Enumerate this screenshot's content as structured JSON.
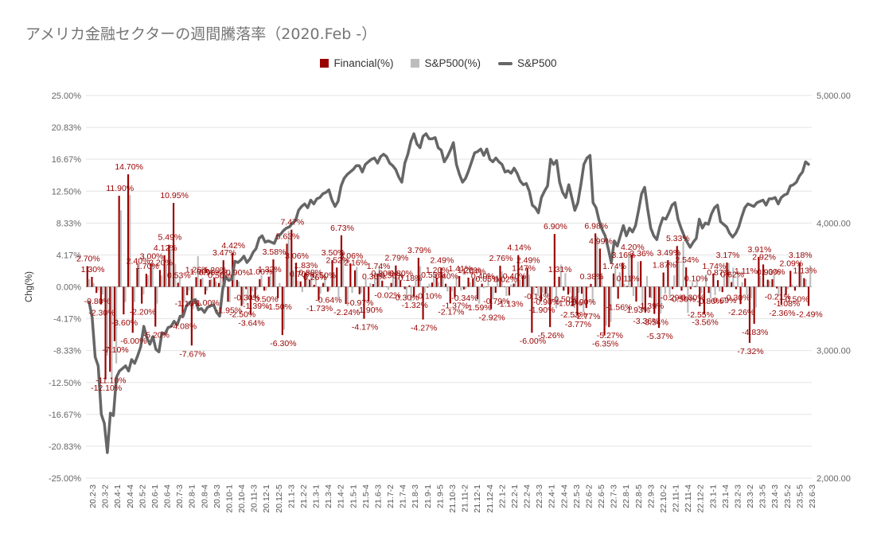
{
  "chart_data": {
    "type": "bar+line",
    "title": "アメリカ金融セクターの週間騰落率（2020.Feb -）",
    "legend": [
      {
        "name": "Financial(%)",
        "color": "#990000"
      },
      {
        "name": "S&P500(%)",
        "color": "#bdbdbd"
      },
      {
        "name": "S&P500",
        "color": "#666666"
      }
    ],
    "ylabel_left": "Chg(%)",
    "y_left": {
      "ticks": [
        "25.00%",
        "20.83%",
        "16.67%",
        "12.50%",
        "8.33%",
        "4.17%",
        "0.00%",
        "-4.17%",
        "-8.33%",
        "-12.50%",
        "-16.67%",
        "-20.83%",
        "-25.00%"
      ],
      "min": -25,
      "max": 25
    },
    "y_right": {
      "ticks": [
        "5,000.00",
        "4,000.00",
        "3,000.00",
        "2,000.00"
      ],
      "min": 2000,
      "max": 5000
    },
    "x_tick_labels": [
      "20.2-3",
      "20.3-2",
      "20.4-1",
      "20.4-4",
      "20.5-2",
      "20.6-1",
      "20.6-4",
      "20.7-3",
      "20.8-1",
      "20.8-4",
      "20.9-3",
      "20.10-1",
      "20.10-4",
      "20.11-3",
      "20.12-1",
      "20.12-5",
      "21.1-3",
      "21.2-2",
      "21.3-1",
      "21.3-4",
      "21.4-2",
      "21.5-1",
      "21.5-4",
      "21.6-3",
      "21.7-2",
      "21.7-4",
      "21.8-3",
      "21.9-1",
      "21.9-5",
      "21.10-3",
      "21.11-2",
      "21.12-1",
      "21.12-4",
      "22.1-2",
      "22.2-1",
      "22.2-4",
      "22.3-3",
      "22.4-1",
      "22.4-4",
      "22.5-3",
      "22.6-2",
      "22.6-5",
      "22.7-3",
      "22.8-1",
      "22.8-5",
      "22.9-3",
      "22.10-2",
      "22.11-1",
      "22.11-4",
      "22.12-2",
      "23.1-1",
      "23.1-4",
      "23.2-3",
      "23.3-2",
      "23.3-5",
      "23.4-3",
      "23.5-2",
      "23.5-5",
      "23.6-3"
    ],
    "financial_pct": [
      2.7,
      1.3,
      -0.8,
      -2.3,
      -12.1,
      -11.1,
      -7.1,
      11.9,
      -3.6,
      14.7,
      -6.0,
      2.4,
      -2.2,
      1.7,
      3.0,
      -5.2,
      2.2,
      4.12,
      5.49,
      10.95,
      0.53,
      -4.08,
      -1.1,
      -7.67,
      1.26,
      1.0,
      -1.0,
      0.9,
      1.2,
      0.5,
      3.47,
      -1.95,
      4.42,
      0.9,
      -2.5,
      -0.3,
      -3.64,
      -1.39,
      1.0,
      -0.5,
      1.32,
      3.58,
      -1.5,
      -6.3,
      5.63,
      7.47,
      3.06,
      0.7,
      1.83,
      0.88,
      0.26,
      -1.73,
      0.5,
      -0.64,
      3.5,
      2.52,
      6.73,
      -2.24,
      3.06,
      2.16,
      -0.97,
      -4.17,
      -1.9,
      0.36,
      1.74,
      0.8,
      -0.02,
      0.5,
      2.79,
      0.8,
      -0.3,
      0.18,
      -1.32,
      3.79,
      -4.27,
      -0.1,
      0.55,
      1.2,
      2.49,
      0.4,
      -2.17,
      -1.37,
      1.41,
      -0.34,
      1.2,
      1.04,
      -1.59,
      0.4,
      0.05,
      -2.92,
      -0.79,
      2.76,
      0.02,
      -1.13,
      0.4,
      4.14,
      1.47,
      2.49,
      -6.0,
      -0.14,
      -1.9,
      -0.9,
      -5.26,
      6.9,
      1.31,
      -0.5,
      -1.02,
      -2.53,
      -3.77,
      -0.9,
      -2.77,
      0.38,
      6.98,
      4.99,
      -6.35,
      -5.27,
      1.74,
      -1.56,
      3.16,
      0.11,
      4.2,
      -1.93,
      3.36,
      -3.36,
      -1.39,
      -3.54,
      -5.37,
      1.87,
      3.49,
      -0.29,
      5.33,
      -0.5,
      2.54,
      -0.3,
      0.1,
      -2.55,
      -3.56,
      -0.8,
      1.74,
      0.87,
      -0.69,
      3.17,
      0.62,
      -0.3,
      -2.26,
      1.11,
      -7.32,
      -4.83,
      3.91,
      2.92,
      0.93,
      1.0,
      -0.21,
      -2.36,
      -1.08,
      2.09,
      -0.5,
      3.18,
      1.13,
      -2.49
    ],
    "sp500_pct": [
      1.0,
      0.5,
      -0.5,
      -1.0,
      -9.0,
      -12.0,
      -10.0,
      10.0,
      -2.0,
      12.0,
      -2.0,
      3.0,
      -1.0,
      1.5,
      3.2,
      -2.2,
      1.5,
      3.0,
      4.9,
      3.0,
      1.2,
      -2.0,
      -0.5,
      -2.9,
      4.0,
      1.2,
      -0.5,
      1.0,
      0.7,
      1.5,
      2.3,
      -2.0,
      2.5,
      0.7,
      -2.3,
      -1.7,
      -0.6,
      -0.4,
      1.5,
      -0.5,
      1.5,
      2.5,
      0.5,
      -5.6,
      7.3,
      2.2,
      0.8,
      -0.7,
      1.7,
      1.3,
      1.2,
      -0.9,
      1.7,
      -0.5,
      1.9,
      -1.5,
      4.7,
      -2.5,
      -0.8,
      2.6,
      -0.8,
      1.0,
      0.5,
      1.8,
      2.7,
      0.1,
      -0.4,
      1.4,
      1.2,
      0.0,
      -1.4,
      -1.9,
      1.2,
      2.7,
      -0.8,
      0.4,
      1.5,
      0.6,
      1.2,
      -0.6,
      -0.6,
      1.4,
      -0.5,
      -0.3,
      0.6,
      1.1,
      -2.2,
      -0.2,
      1.8,
      -1.6,
      1.5,
      2.0,
      -1.2,
      0.3,
      0.7,
      0.9,
      1.4,
      1.6,
      -1.0,
      -1.2,
      -0.8,
      -1.2,
      -1.8,
      -2.8,
      2.9,
      1.8,
      -0.8,
      -2.8,
      -0.8,
      -3.3,
      -0.2,
      -2.1,
      6.6,
      1.8,
      -5.1,
      -4.6,
      2.4,
      1.9,
      0.4,
      4.3,
      -1.2,
      3.3,
      -3.3,
      1.4,
      -1.5,
      -2.9,
      -3.5,
      -0.9,
      -1.5,
      1.5,
      4.7,
      5.9,
      -3.4,
      0.6,
      1.0,
      -0.8,
      1.6,
      -1.5,
      -1.1,
      -0.6,
      1.6,
      3.1,
      2.5,
      1.8,
      0.6,
      -1.1,
      -1.5,
      -2.7,
      1.4,
      0.2,
      0.8,
      1.6,
      -1.2,
      -0.1,
      -0.3,
      0.3,
      0.2,
      1.9,
      1.0,
      2.8,
      -0.3
    ],
    "sp500": [
      3380,
      3260,
      2950,
      2880,
      2500,
      2430,
      2200,
      2510,
      2490,
      2790,
      2840,
      2860,
      2880,
      2840,
      2930,
      2900,
      2960,
      3030,
      3190,
      3100,
      3050,
      3110,
      3010,
      2990,
      3140,
      3130,
      3180,
      3190,
      3230,
      3200,
      3270,
      3270,
      3350,
      3375,
      3390,
      3400,
      3320,
      3330,
      3300,
      3340,
      3350,
      3360,
      3300,
      3270,
      3480,
      3580,
      3550,
      3560,
      3700,
      3690,
      3710,
      3740,
      3690,
      3720,
      3770,
      3800,
      3880,
      3900,
      3850,
      3860,
      3850,
      3840,
      3900,
      3910,
      3940,
      3960,
      3970,
      4000,
      4020,
      4100,
      4130,
      4150,
      4120,
      4180,
      4150,
      4190,
      4200,
      4230,
      4240,
      4260,
      4180,
      4130,
      4170,
      4290,
      4350,
      4380,
      4400,
      4420,
      4450,
      4450,
      4400,
      4460,
      4480,
      4500,
      4510,
      4470,
      4520,
      4540,
      4520,
      4470,
      4450,
      4420,
      4360,
      4320,
      4470,
      4540,
      4640,
      4700,
      4620,
      4590,
      4680,
      4700,
      4660,
      4660,
      4670,
      4590,
      4570,
      4480,
      4520,
      4570,
      4630,
      4460,
      4380,
      4320,
      4350,
      4410,
      4480,
      4550,
      4560,
      4580,
      4530,
      4580,
      4500,
      4480,
      4510,
      4480,
      4460,
      4400,
      4410,
      4390,
      4430,
      4390,
      4330,
      4300,
      4310,
      4250,
      4140,
      4120,
      4080,
      4200,
      4250,
      4290,
      4500,
      4460,
      4490,
      4320,
      4240,
      4200,
      4300,
      4200,
      4100,
      4160,
      4300,
      4460,
      4510,
      4530,
      4160,
      4120,
      4020,
      3950,
      3900,
      3800,
      3690,
      3860,
      3820,
      3900,
      3980,
      3900,
      3960,
      3930,
      3980,
      4100,
      4230,
      4280,
      4110,
      3960,
      3900,
      3870,
      3970,
      4040,
      4030,
      4080,
      4140,
      4160,
      4030,
      3960,
      3900,
      3850,
      3810,
      3850,
      3880,
      4030,
      3960,
      4000,
      3990,
      4070,
      4120,
      4140,
      4010,
      3990,
      3970,
      3920,
      3890,
      3920,
      3970,
      4050,
      4120,
      4150,
      4140,
      4130,
      4160,
      4170,
      4180,
      4140,
      4190,
      4190,
      4200,
      4150,
      4200,
      4220,
      4230,
      4290,
      4300,
      4320,
      4370,
      4400,
      4480,
      4460
    ]
  }
}
